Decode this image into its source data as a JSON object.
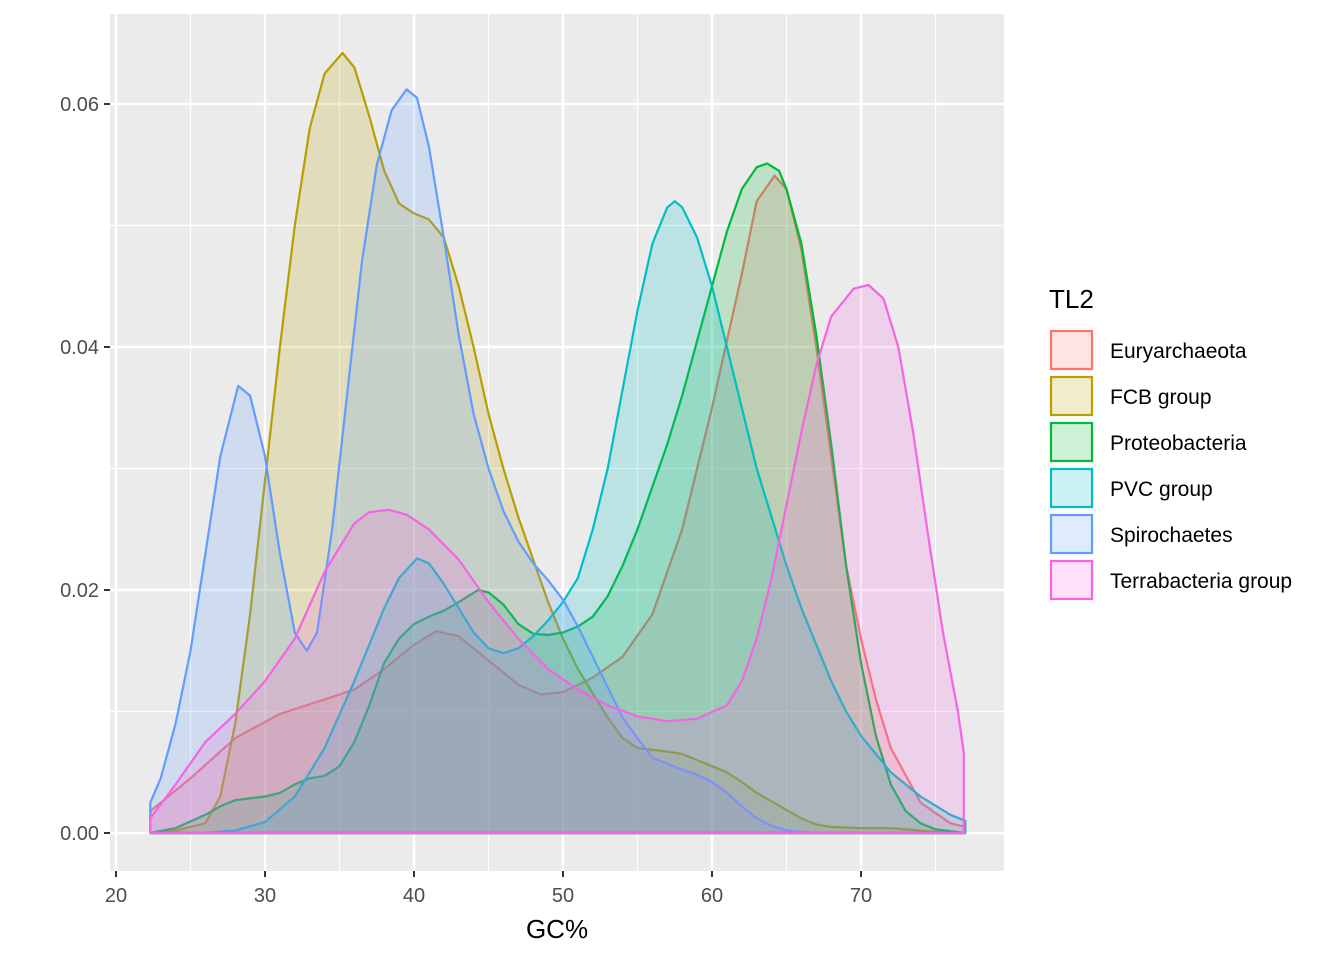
{
  "chart_data": {
    "type": "area",
    "subtype": "density",
    "title": "",
    "xlabel": "GC%",
    "ylabel": "",
    "xlim": [
      20,
      77.5
    ],
    "ylim": [
      -0.0025,
      0.0665
    ],
    "x_ticks": [
      20,
      30,
      40,
      50,
      60,
      70
    ],
    "x_tick_labels": [
      "20",
      "30",
      "40",
      "50",
      "60",
      "70"
    ],
    "y_ticks": [
      0.0,
      0.02,
      0.04,
      0.06
    ],
    "y_tick_labels": [
      "0.00",
      "0.02",
      "0.04",
      "0.06"
    ],
    "grid": true,
    "legend": {
      "title": "TL2",
      "position": "right"
    },
    "series": [
      {
        "name": "Euryarchaeota",
        "color": "#F8766D",
        "points": [
          [
            22.3,
            0.0018
          ],
          [
            25,
            0.0045
          ],
          [
            28,
            0.0078
          ],
          [
            31,
            0.0098
          ],
          [
            34,
            0.011
          ],
          [
            36,
            0.0118
          ],
          [
            38,
            0.0135
          ],
          [
            40,
            0.0155
          ],
          [
            41.5,
            0.0166
          ],
          [
            43,
            0.0162
          ],
          [
            45,
            0.0142
          ],
          [
            47,
            0.0122
          ],
          [
            48.5,
            0.0114
          ],
          [
            50,
            0.0116
          ],
          [
            52,
            0.0128
          ],
          [
            54,
            0.0145
          ],
          [
            56,
            0.018
          ],
          [
            58,
            0.025
          ],
          [
            60,
            0.035
          ],
          [
            62,
            0.046
          ],
          [
            63,
            0.052
          ],
          [
            64.2,
            0.0541
          ],
          [
            65,
            0.053
          ],
          [
            66,
            0.048
          ],
          [
            67,
            0.04
          ],
          [
            68,
            0.031
          ],
          [
            69,
            0.022
          ],
          [
            70,
            0.016
          ],
          [
            71,
            0.011
          ],
          [
            72,
            0.007
          ],
          [
            74,
            0.0025
          ],
          [
            76,
            0.0008
          ],
          [
            77,
            0.0005
          ]
        ]
      },
      {
        "name": "FCB group",
        "color": "#B79F00",
        "points": [
          [
            22.3,
            0.0
          ],
          [
            24,
            0.0002
          ],
          [
            26,
            0.0008
          ],
          [
            27,
            0.003
          ],
          [
            28,
            0.009
          ],
          [
            29,
            0.018
          ],
          [
            30,
            0.029
          ],
          [
            31,
            0.04
          ],
          [
            32,
            0.05
          ],
          [
            33,
            0.058
          ],
          [
            34,
            0.0625
          ],
          [
            35.2,
            0.0642
          ],
          [
            36,
            0.063
          ],
          [
            37,
            0.059
          ],
          [
            38,
            0.0545
          ],
          [
            39,
            0.0518
          ],
          [
            40,
            0.051
          ],
          [
            41,
            0.0505
          ],
          [
            42,
            0.049
          ],
          [
            43,
            0.045
          ],
          [
            44,
            0.04
          ],
          [
            45,
            0.0345
          ],
          [
            46,
            0.03
          ],
          [
            47,
            0.026
          ],
          [
            48,
            0.0225
          ],
          [
            49,
            0.019
          ],
          [
            50,
            0.016
          ],
          [
            51,
            0.0135
          ],
          [
            52,
            0.0115
          ],
          [
            53,
            0.0095
          ],
          [
            54,
            0.0078
          ],
          [
            55,
            0.007
          ],
          [
            57,
            0.0067
          ],
          [
            58,
            0.0065
          ],
          [
            59,
            0.006
          ],
          [
            60,
            0.0055
          ],
          [
            61,
            0.005
          ],
          [
            62,
            0.0042
          ],
          [
            63,
            0.0033
          ],
          [
            64,
            0.0026
          ],
          [
            65,
            0.0019
          ],
          [
            66,
            0.0012
          ],
          [
            67,
            0.0007
          ],
          [
            68,
            0.0005
          ],
          [
            70,
            0.0004
          ],
          [
            72,
            0.0004
          ],
          [
            73,
            0.0003
          ],
          [
            75,
            0.0001
          ],
          [
            77,
            0.0
          ]
        ]
      },
      {
        "name": "Proteobacteria",
        "color": "#00BA38",
        "points": [
          [
            22.3,
            0.0
          ],
          [
            24,
            0.0004
          ],
          [
            26,
            0.0015
          ],
          [
            27,
            0.0022
          ],
          [
            28,
            0.0027
          ],
          [
            30,
            0.003
          ],
          [
            31,
            0.0033
          ],
          [
            32,
            0.004
          ],
          [
            33,
            0.0045
          ],
          [
            34,
            0.0047
          ],
          [
            35,
            0.0055
          ],
          [
            36,
            0.0075
          ],
          [
            37,
            0.0105
          ],
          [
            38,
            0.014
          ],
          [
            39,
            0.016
          ],
          [
            40,
            0.0172
          ],
          [
            41,
            0.0178
          ],
          [
            42,
            0.0183
          ],
          [
            43,
            0.019
          ],
          [
            44.3,
            0.02
          ],
          [
            45,
            0.0198
          ],
          [
            46,
            0.0188
          ],
          [
            47,
            0.0172
          ],
          [
            48,
            0.0164
          ],
          [
            49,
            0.0163
          ],
          [
            50,
            0.0165
          ],
          [
            51,
            0.017
          ],
          [
            52,
            0.0178
          ],
          [
            53,
            0.0195
          ],
          [
            54,
            0.022
          ],
          [
            55,
            0.025
          ],
          [
            56,
            0.0285
          ],
          [
            57,
            0.032
          ],
          [
            58,
            0.036
          ],
          [
            59,
            0.0405
          ],
          [
            60,
            0.045
          ],
          [
            61,
            0.0495
          ],
          [
            62,
            0.053
          ],
          [
            63,
            0.0548
          ],
          [
            63.7,
            0.0551
          ],
          [
            64.5,
            0.0545
          ],
          [
            65,
            0.053
          ],
          [
            66,
            0.0485
          ],
          [
            67,
            0.041
          ],
          [
            68,
            0.032
          ],
          [
            69,
            0.022
          ],
          [
            70,
            0.014
          ],
          [
            71,
            0.008
          ],
          [
            72,
            0.004
          ],
          [
            73,
            0.0018
          ],
          [
            74,
            0.0008
          ],
          [
            75,
            0.0003
          ],
          [
            77,
            0.0
          ]
        ]
      },
      {
        "name": "PVC group",
        "color": "#00BFC4",
        "points": [
          [
            22.3,
            0.0
          ],
          [
            26,
            0.0
          ],
          [
            28,
            0.0002
          ],
          [
            30,
            0.0009
          ],
          [
            32,
            0.003
          ],
          [
            34,
            0.007
          ],
          [
            36,
            0.0125
          ],
          [
            38,
            0.0185
          ],
          [
            39,
            0.021
          ],
          [
            40.2,
            0.0226
          ],
          [
            41,
            0.0222
          ],
          [
            42,
            0.0205
          ],
          [
            43,
            0.0185
          ],
          [
            44,
            0.0165
          ],
          [
            45,
            0.0152
          ],
          [
            46,
            0.0148
          ],
          [
            47,
            0.0152
          ],
          [
            48,
            0.0162
          ],
          [
            49,
            0.0175
          ],
          [
            50,
            0.019
          ],
          [
            51,
            0.021
          ],
          [
            52,
            0.025
          ],
          [
            53,
            0.03
          ],
          [
            54,
            0.0365
          ],
          [
            55,
            0.043
          ],
          [
            56,
            0.0485
          ],
          [
            57,
            0.0515
          ],
          [
            57.5,
            0.052
          ],
          [
            58,
            0.0515
          ],
          [
            59,
            0.049
          ],
          [
            60,
            0.045
          ],
          [
            61,
            0.04
          ],
          [
            62,
            0.035
          ],
          [
            63,
            0.03
          ],
          [
            64,
            0.026
          ],
          [
            65,
            0.022
          ],
          [
            66,
            0.0185
          ],
          [
            67,
            0.0155
          ],
          [
            68,
            0.0125
          ],
          [
            69,
            0.01
          ],
          [
            70,
            0.008
          ],
          [
            71,
            0.0065
          ],
          [
            72,
            0.005
          ],
          [
            74,
            0.003
          ],
          [
            76,
            0.0015
          ],
          [
            77,
            0.001
          ]
        ]
      },
      {
        "name": "Spirochaetes",
        "color": "#619CFF",
        "points": [
          [
            22.3,
            0.0025
          ],
          [
            23,
            0.0045
          ],
          [
            24,
            0.009
          ],
          [
            25,
            0.015
          ],
          [
            26,
            0.023
          ],
          [
            27,
            0.031
          ],
          [
            28.2,
            0.0368
          ],
          [
            29,
            0.036
          ],
          [
            30,
            0.031
          ],
          [
            31,
            0.023
          ],
          [
            32,
            0.0165
          ],
          [
            32.8,
            0.015
          ],
          [
            33.5,
            0.0165
          ],
          [
            34.5,
            0.025
          ],
          [
            35.5,
            0.036
          ],
          [
            36.5,
            0.047
          ],
          [
            37.5,
            0.055
          ],
          [
            38.5,
            0.0595
          ],
          [
            39.5,
            0.0612
          ],
          [
            40.2,
            0.0605
          ],
          [
            41,
            0.0565
          ],
          [
            42,
            0.049
          ],
          [
            43,
            0.041
          ],
          [
            44,
            0.0345
          ],
          [
            45,
            0.03
          ],
          [
            46,
            0.0265
          ],
          [
            47,
            0.024
          ],
          [
            48,
            0.0222
          ],
          [
            49,
            0.0208
          ],
          [
            50,
            0.0192
          ],
          [
            51,
            0.017
          ],
          [
            52,
            0.0145
          ],
          [
            53,
            0.012
          ],
          [
            54,
            0.0095
          ],
          [
            55,
            0.0078
          ],
          [
            56,
            0.0062
          ],
          [
            58,
            0.0052
          ],
          [
            59,
            0.0048
          ],
          [
            60,
            0.0042
          ],
          [
            61,
            0.0033
          ],
          [
            62,
            0.0022
          ],
          [
            63,
            0.0012
          ],
          [
            64,
            0.0006
          ],
          [
            65,
            0.0002
          ],
          [
            67,
            0.0
          ],
          [
            77,
            0.0
          ]
        ]
      },
      {
        "name": "Terrabacteria group",
        "color": "#F564E3",
        "points": [
          [
            22.3,
            0.0012
          ],
          [
            24,
            0.004
          ],
          [
            26,
            0.0075
          ],
          [
            28,
            0.0098
          ],
          [
            30,
            0.0125
          ],
          [
            32,
            0.016
          ],
          [
            34,
            0.0215
          ],
          [
            36,
            0.0255
          ],
          [
            37,
            0.0264
          ],
          [
            38.3,
            0.0266
          ],
          [
            39.5,
            0.0262
          ],
          [
            41,
            0.025
          ],
          [
            43,
            0.0225
          ],
          [
            45,
            0.019
          ],
          [
            47,
            0.016
          ],
          [
            49,
            0.0135
          ],
          [
            51,
            0.0118
          ],
          [
            53,
            0.0105
          ],
          [
            55,
            0.0096
          ],
          [
            57,
            0.0092
          ],
          [
            59,
            0.0094
          ],
          [
            61,
            0.0105
          ],
          [
            62,
            0.0125
          ],
          [
            63,
            0.016
          ],
          [
            64,
            0.021
          ],
          [
            65,
            0.027
          ],
          [
            66,
            0.033
          ],
          [
            67,
            0.0385
          ],
          [
            68,
            0.0425
          ],
          [
            69.5,
            0.0448
          ],
          [
            70.5,
            0.0451
          ],
          [
            71.5,
            0.044
          ],
          [
            72.5,
            0.04
          ],
          [
            73.5,
            0.033
          ],
          [
            74.5,
            0.0245
          ],
          [
            75.5,
            0.0165
          ],
          [
            76.5,
            0.01
          ],
          [
            76.9,
            0.0066
          ]
        ]
      }
    ]
  }
}
